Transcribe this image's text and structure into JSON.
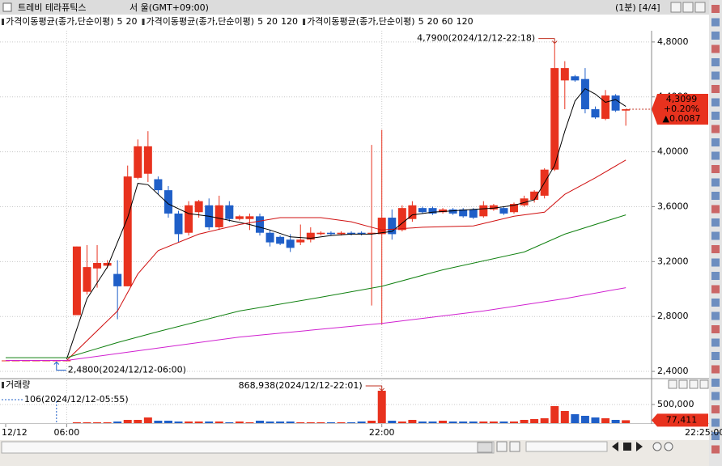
{
  "window": {
    "title": "트레비 테라퓨틱스",
    "market": "서 울(GMT+09:00)",
    "page_info": "(1분) [4/4]",
    "last_time": "22:25:00"
  },
  "chart_data": [
    {
      "type": "candlestick",
      "indicators": [
        {
          "label": "가격이동평균(종가,단순이평)",
          "periods": [
            {
              "value": 5,
              "color": "#000000"
            },
            {
              "value": 20,
              "color": "#d01010"
            }
          ]
        },
        {
          "label": "가격이동평균(종가,단순이평)",
          "periods": [
            {
              "value": 5,
              "color": "#000000"
            },
            {
              "value": 20,
              "color": "#d01010"
            },
            {
              "value": 120,
              "color": "#d020d0"
            }
          ]
        },
        {
          "label": "가격이동평균(종가,단순이평)",
          "periods": [
            {
              "value": 5,
              "color": "#000000"
            },
            {
              "value": 20,
              "color": "#d01010"
            },
            {
              "value": 60,
              "color": "#108010"
            },
            {
              "value": 120,
              "color": "#d020d0"
            }
          ]
        }
      ],
      "categories": [
        "12/12",
        null,
        null,
        null,
        null,
        null,
        "06:00",
        null,
        null,
        null,
        null,
        null,
        null,
        null,
        null,
        null,
        null,
        null,
        null,
        null,
        null,
        null,
        null,
        null,
        null,
        null,
        null,
        null,
        null,
        null,
        null,
        null,
        null,
        null,
        null,
        null,
        null,
        "22:00",
        null,
        null,
        null,
        null,
        null,
        null,
        null,
        null,
        null,
        null,
        null,
        null,
        null,
        null,
        null,
        null,
        null,
        null,
        null,
        null,
        null,
        null,
        null,
        null
      ],
      "open": [
        2.48,
        2.48,
        2.48,
        2.48,
        2.48,
        2.48,
        2.48,
        2.81,
        2.98,
        3.15,
        3.17,
        3.11,
        3.02,
        3.81,
        3.84,
        3.8,
        3.72,
        3.55,
        3.41,
        3.56,
        3.61,
        3.45,
        3.61,
        3.51,
        3.51,
        3.53,
        3.41,
        3.38,
        3.36,
        3.34,
        3.36,
        3.4,
        3.41,
        3.4,
        3.41,
        3.41,
        3.4,
        3.4,
        3.52,
        3.43,
        3.51,
        3.59,
        3.59,
        3.56,
        3.58,
        3.58,
        3.58,
        3.53,
        3.58,
        3.59,
        3.56,
        3.61,
        3.65,
        3.68,
        3.87,
        4.52,
        4.55,
        4.53,
        4.31,
        4.24,
        4.41,
        4.3
      ],
      "high": [
        2.48,
        2.48,
        2.48,
        2.48,
        2.48,
        2.48,
        2.48,
        3.31,
        3.32,
        3.32,
        3.21,
        3.21,
        3.9,
        4.09,
        4.15,
        3.82,
        3.75,
        3.57,
        3.64,
        3.65,
        3.66,
        3.68,
        3.64,
        3.54,
        3.55,
        3.55,
        3.43,
        3.39,
        3.4,
        3.47,
        3.45,
        3.42,
        3.42,
        3.42,
        3.42,
        3.42,
        4.05,
        4.16,
        3.58,
        3.61,
        3.64,
        3.6,
        3.6,
        3.59,
        3.59,
        3.59,
        3.59,
        3.64,
        3.62,
        3.6,
        3.63,
        3.68,
        3.72,
        3.88,
        4.79,
        4.66,
        4.56,
        4.61,
        4.33,
        4.45,
        4.42,
        4.31
      ],
      "low": [
        2.48,
        2.48,
        2.48,
        2.48,
        2.48,
        2.48,
        2.48,
        2.81,
        2.96,
        3.01,
        3.15,
        2.78,
        3.02,
        3.8,
        3.78,
        3.69,
        3.52,
        3.34,
        3.39,
        3.52,
        3.43,
        3.43,
        3.49,
        3.5,
        3.43,
        3.39,
        3.31,
        3.32,
        3.27,
        3.32,
        3.34,
        3.39,
        3.39,
        3.39,
        3.39,
        3.39,
        2.88,
        2.74,
        3.36,
        3.42,
        3.49,
        3.55,
        3.54,
        3.55,
        3.54,
        3.52,
        3.51,
        3.52,
        3.57,
        3.54,
        3.55,
        3.6,
        3.63,
        3.66,
        3.86,
        4.31,
        4.51,
        4.28,
        4.24,
        4.23,
        4.29,
        4.19
      ],
      "close": [
        2.48,
        2.48,
        2.48,
        2.48,
        2.48,
        2.48,
        2.48,
        3.31,
        3.16,
        3.19,
        3.19,
        3.02,
        3.82,
        4.04,
        4.04,
        3.72,
        3.55,
        3.4,
        3.61,
        3.64,
        3.45,
        3.61,
        3.51,
        3.53,
        3.53,
        3.41,
        3.34,
        3.33,
        3.3,
        3.36,
        3.41,
        3.41,
        3.4,
        3.41,
        3.4,
        3.4,
        3.41,
        3.52,
        3.4,
        3.59,
        3.61,
        3.56,
        3.55,
        3.58,
        3.55,
        3.53,
        3.52,
        3.61,
        3.61,
        3.55,
        3.62,
        3.66,
        3.71,
        3.87,
        4.61,
        4.61,
        4.52,
        4.31,
        4.25,
        4.41,
        4.3,
        4.31
      ],
      "up_color": "#e8321e",
      "down_color": "#1f5fc8",
      "lines": [
        {
          "color": "#000000",
          "x": [
            6,
            8,
            10,
            12,
            13,
            14,
            16,
            18,
            20,
            22,
            24,
            26,
            28,
            30,
            32,
            34,
            36,
            38,
            40,
            42,
            44,
            46,
            48,
            50,
            52,
            54,
            55,
            56,
            57,
            58,
            59,
            60,
            61
          ],
          "values": [
            2.49,
            2.93,
            3.16,
            3.52,
            3.77,
            3.76,
            3.62,
            3.55,
            3.53,
            3.5,
            3.47,
            3.43,
            3.38,
            3.37,
            3.39,
            3.4,
            3.4,
            3.42,
            3.54,
            3.56,
            3.57,
            3.58,
            3.59,
            3.61,
            3.65,
            3.9,
            4.15,
            4.37,
            4.46,
            4.42,
            4.36,
            4.38,
            4.33
          ]
        },
        {
          "color": "#d01010",
          "x": [
            0,
            6,
            11,
            13,
            15,
            19,
            23,
            27,
            31,
            34,
            37,
            41,
            46,
            50,
            53,
            55,
            58,
            61
          ],
          "values": [
            2.48,
            2.48,
            2.84,
            3.11,
            3.28,
            3.4,
            3.47,
            3.52,
            3.52,
            3.49,
            3.43,
            3.45,
            3.46,
            3.53,
            3.56,
            3.69,
            3.81,
            3.94
          ]
        },
        {
          "color": "#108010",
          "x": [
            0,
            6,
            11,
            15,
            23,
            31,
            37,
            43,
            51,
            55,
            61
          ],
          "values": [
            2.5,
            2.5,
            2.61,
            2.69,
            2.84,
            2.94,
            3.02,
            3.14,
            3.27,
            3.4,
            3.54
          ]
        },
        {
          "color": "#d020d0",
          "x": [
            0,
            6,
            11,
            23,
            37,
            47,
            55,
            61
          ],
          "values": [
            2.48,
            2.48,
            2.53,
            2.65,
            2.75,
            2.84,
            2.93,
            3.01
          ]
        }
      ],
      "ylim": [
        2.365,
        4.87
      ],
      "yticks": [
        {
          "value": 2.4,
          "label": "2,4000"
        },
        {
          "value": 2.8,
          "label": "2,8000"
        },
        {
          "value": 3.2,
          "label": "3,2000"
        },
        {
          "value": 3.6,
          "label": "3,6000"
        },
        {
          "value": 4.0,
          "label": "4,0000"
        },
        {
          "value": 4.4,
          "label": "4,4000"
        },
        {
          "value": 4.8,
          "label": "4,8000"
        }
      ],
      "grid": true,
      "max_label": "4,7900(2024/12/12-22:18)",
      "min_label": "2,4800(2024/12/12-06:00)",
      "last_price_labels": [
        "4,3099",
        "+0.20%",
        "▲0.0087"
      ]
    },
    {
      "type": "bar",
      "title": "거래량",
      "values": [
        0,
        0,
        0,
        0,
        0,
        106,
        0,
        22000,
        22000,
        22000,
        22000,
        43000,
        87000,
        87000,
        152000,
        65000,
        65000,
        43000,
        43000,
        43000,
        43000,
        43000,
        22000,
        43000,
        22000,
        65000,
        43000,
        43000,
        43000,
        22000,
        22000,
        22000,
        22000,
        22000,
        22000,
        43000,
        65000,
        868938,
        65000,
        43000,
        87000,
        43000,
        43000,
        65000,
        43000,
        43000,
        43000,
        43000,
        43000,
        43000,
        43000,
        87000,
        109000,
        130000,
        456000,
        326000,
        239000,
        196000,
        152000,
        130000,
        87000,
        77411
      ],
      "ylim": [
        0,
        1150000
      ],
      "yticks": [
        {
          "value": 500000,
          "label": "500,000"
        }
      ],
      "grid": true,
      "max_label": "868,938(2024/12/12-22:01)",
      "min_label": "106(2024/12/12-05:55)",
      "last_value_label": "77,411"
    }
  ]
}
